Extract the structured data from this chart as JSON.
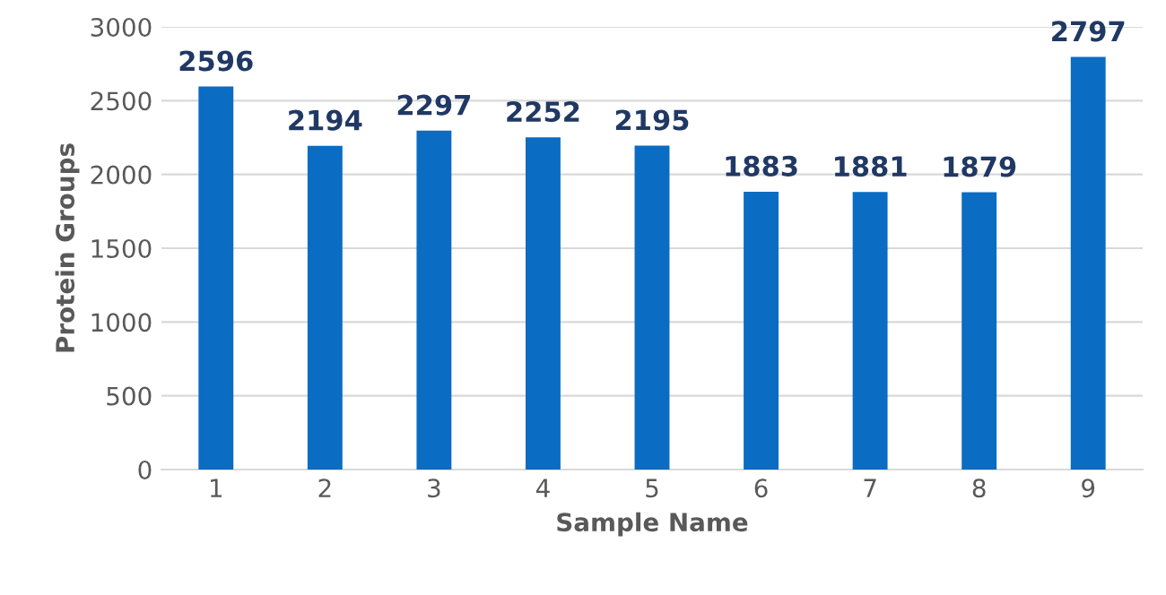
{
  "chart_data": {
    "type": "bar",
    "xlabel": "Sample Name",
    "ylabel": "Protein Groups",
    "categories": [
      "1",
      "2",
      "3",
      "4",
      "5",
      "6",
      "7",
      "8",
      "9"
    ],
    "values": [
      2596,
      2194,
      2297,
      2252,
      2195,
      1883,
      1881,
      1879,
      2797
    ],
    "color": "#0a6cc2",
    "ylim": [
      0,
      3000
    ],
    "yticks": [
      0,
      500,
      1000,
      1500,
      2000,
      2500,
      3000
    ],
    "grid": "y",
    "data_labels": true,
    "legend": false
  }
}
